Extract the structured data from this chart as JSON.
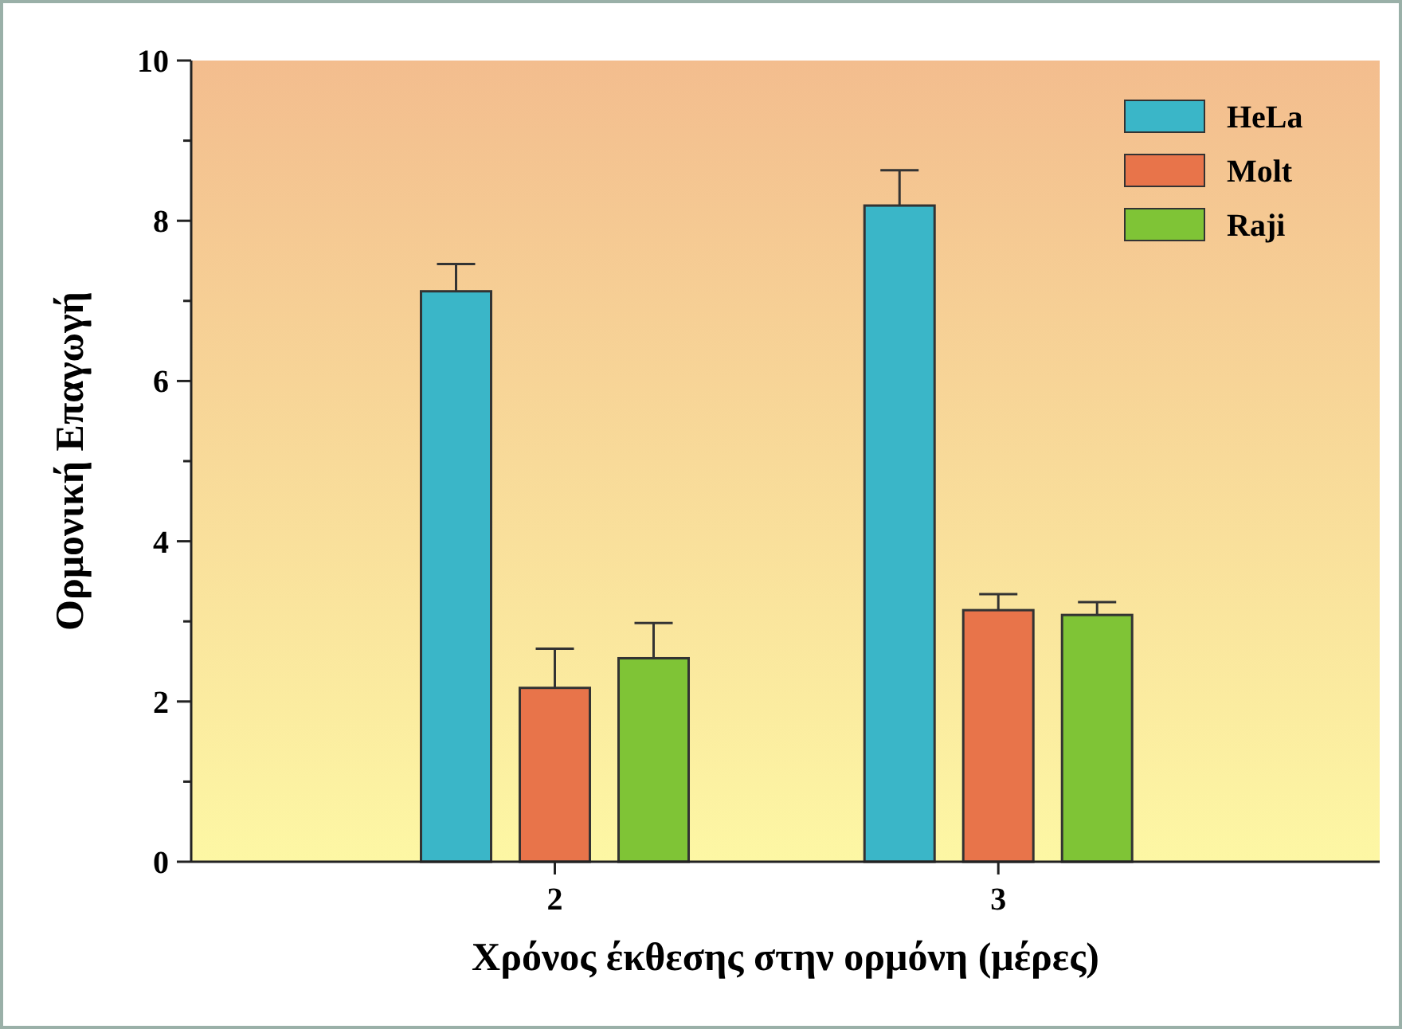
{
  "chart_data": {
    "type": "bar",
    "xlabel": "Χρόνος έκθεσης στην ορμόνη (μέρες)",
    "ylabel": "Ορμονική Επαγωγή",
    "categories": [
      "2",
      "3"
    ],
    "series": [
      {
        "name": "HeLa",
        "color": "#3ab6c8",
        "values": [
          7.12,
          8.19
        ],
        "errors": [
          [
            7.12,
            7.46
          ],
          [
            8.19,
            8.63
          ]
        ]
      },
      {
        "name": "Molt",
        "color": "#e8744a",
        "values": [
          2.17,
          3.14
        ],
        "errors": [
          [
            2.17,
            2.66
          ],
          [
            3.14,
            3.34
          ]
        ]
      },
      {
        "name": "Raji",
        "color": "#7fc436",
        "values": [
          2.54,
          3.08
        ],
        "errors": [
          [
            2.54,
            2.98
          ],
          [
            3.08,
            3.24
          ]
        ]
      }
    ],
    "ylim": [
      0,
      10
    ],
    "yticks": [
      0,
      {
        "value": 1,
        "label": null
      },
      2,
      {
        "value": 3,
        "label": null
      },
      4,
      {
        "value": 5,
        "label": null
      },
      6,
      {
        "value": 7,
        "label": null
      },
      8,
      {
        "value": 9,
        "label": null
      },
      10
    ],
    "grid": false,
    "legend": "top right"
  }
}
